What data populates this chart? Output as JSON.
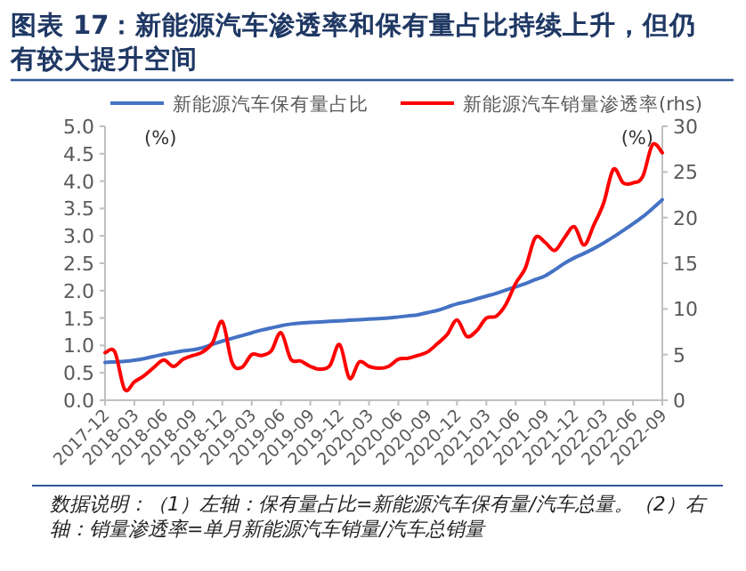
{
  "chart_data": {
    "type": "line",
    "title": "图表 17：新能源汽车渗透率和保有量占比持续上升，但仍有较大提升空间",
    "categories": [
      "2017-12",
      null,
      null,
      "2018-03",
      null,
      null,
      "2018-06",
      null,
      null,
      "2018-09",
      null,
      null,
      "2018-12",
      null,
      null,
      "2019-03",
      null,
      null,
      "2019-06",
      null,
      null,
      "2019-09",
      null,
      null,
      "2019-12",
      null,
      null,
      "2020-03",
      null,
      null,
      "2020-06",
      null,
      null,
      "2020-09",
      null,
      null,
      "2020-12",
      null,
      null,
      "2021-03",
      null,
      null,
      "2021-06",
      null,
      null,
      "2021-09",
      null,
      null,
      "2021-12",
      null,
      null,
      "2022-03",
      null,
      null,
      "2022-06",
      null,
      null,
      "2022-09"
    ],
    "series": [
      {
        "name": "新能源汽车保有量占比",
        "color": "#4472c4",
        "values": [
          0.69,
          0.7,
          0.71,
          0.73,
          0.76,
          0.8,
          0.84,
          0.87,
          0.9,
          0.92,
          0.96,
          1.02,
          1.08,
          1.13,
          1.18,
          1.23,
          1.28,
          1.32,
          1.36,
          1.39,
          1.41,
          1.42,
          1.43,
          1.44,
          1.45,
          1.46,
          1.47,
          1.48,
          1.49,
          1.5,
          1.52,
          1.54,
          1.56,
          1.6,
          1.64,
          1.7,
          1.76,
          1.8,
          1.85,
          1.9,
          1.95,
          2.01,
          2.07,
          2.13,
          2.2,
          2.27,
          2.38,
          2.5,
          2.6,
          2.68,
          2.77,
          2.87,
          2.98,
          3.1,
          3.22,
          3.35,
          3.5,
          3.66
        ]
      },
      {
        "name": "新能源汽车销量渗透率(rhs)",
        "color": "#ff0000",
        "axis": "y2",
        "values": [
          5.2,
          5.3,
          1.2,
          2.0,
          2.7,
          3.6,
          4.4,
          3.7,
          4.5,
          4.9,
          5.3,
          6.3,
          8.6,
          4.1,
          3.6,
          5.0,
          4.9,
          5.4,
          7.4,
          4.5,
          4.3,
          3.7,
          3.4,
          3.8,
          6.1,
          2.4,
          4.2,
          3.7,
          3.5,
          3.7,
          4.5,
          4.6,
          4.9,
          5.3,
          6.2,
          7.2,
          8.8,
          7.0,
          7.6,
          9.0,
          9.2,
          10.5,
          12.8,
          14.5,
          17.8,
          17.3,
          16.4,
          17.8,
          19.0,
          17.0,
          19.2,
          21.6,
          25.3,
          23.8,
          23.8,
          24.5,
          28.0,
          27.1
        ]
      }
    ],
    "ylabel": "(%)",
    "y2label": "(%)",
    "ylim": [
      0,
      5
    ],
    "yticks": [
      {
        "value": 0,
        "label": "0.0"
      },
      {
        "value": 0.5,
        "label": "0.5"
      },
      {
        "value": 1,
        "label": "1.0"
      },
      {
        "value": 1.5,
        "label": "1.5"
      },
      {
        "value": 2,
        "label": "2.0"
      },
      {
        "value": 2.5,
        "label": "2.5"
      },
      {
        "value": 3,
        "label": "3.0"
      },
      {
        "value": 3.5,
        "label": "3.5"
      },
      {
        "value": 4,
        "label": "4.0"
      },
      {
        "value": 4.5,
        "label": "4.5"
      },
      {
        "value": 5,
        "label": "5.0"
      }
    ],
    "y2lim": [
      0,
      30
    ],
    "y2ticks": [
      0,
      5,
      10,
      15,
      20,
      25,
      30
    ],
    "legend": "top",
    "grid": false,
    "annotations": [
      "数据说明：（1）左轴：保有量占比=新能源汽车保有量/汽车总量。（2）右轴：销量渗透率=单月新能源汽车销量/汽车总销量"
    ]
  }
}
